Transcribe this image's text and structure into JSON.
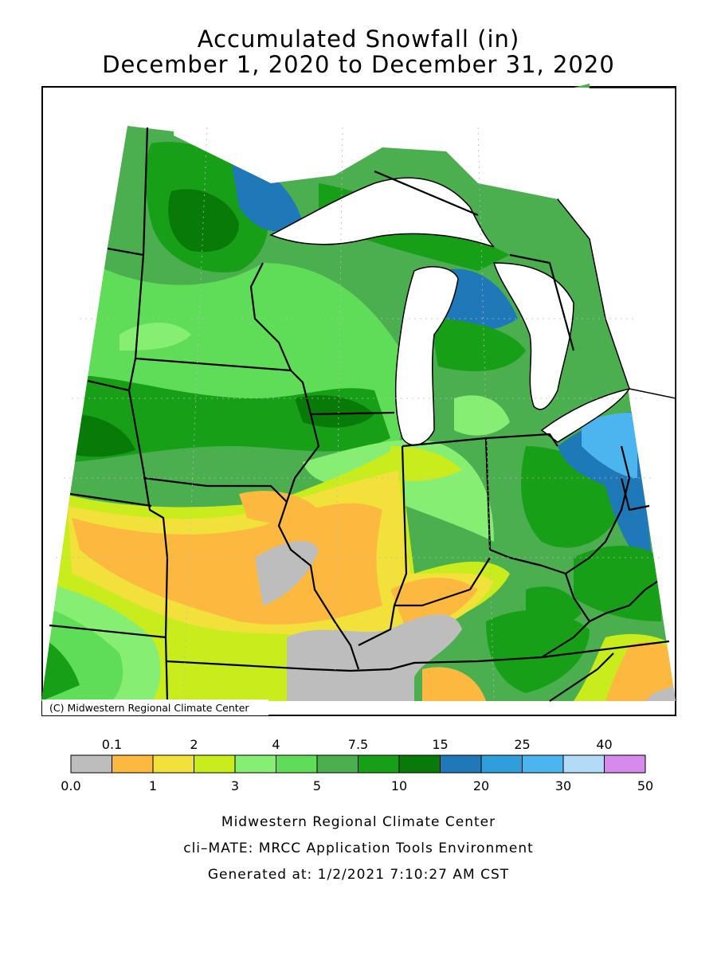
{
  "title": "Accumulated Snowfall (in)",
  "subtitle": "December 1, 2020 to December 31, 2020",
  "copyright": "(C) Midwestern Regional Climate Center",
  "legend": {
    "top_labels": [
      "0.1",
      "2",
      "4",
      "7.5",
      "15",
      "25",
      "40"
    ],
    "bottom_labels": [
      "0.0",
      "1",
      "3",
      "5",
      "10",
      "20",
      "30",
      "50"
    ],
    "bins": [
      {
        "color": "#bdbdbd"
      },
      {
        "color": "#fdb93f"
      },
      {
        "color": "#f2e03b"
      },
      {
        "color": "#c8ec1c"
      },
      {
        "color": "#86ee72"
      },
      {
        "color": "#5fdc58"
      },
      {
        "color": "#4caf4f"
      },
      {
        "color": "#17a017"
      },
      {
        "color": "#077a07"
      },
      {
        "color": "#1f78b8"
      },
      {
        "color": "#2f9fdc"
      },
      {
        "color": "#4cb5ef"
      },
      {
        "color": "#b3dbf7"
      },
      {
        "color": "#d68aec"
      }
    ]
  },
  "credits": {
    "line1": "Midwestern Regional Climate Center",
    "line2": "cli–MATE: MRCC Application Tools Environment",
    "line3": "Generated at: 1/2/2021 7:10:27 AM CST"
  }
}
